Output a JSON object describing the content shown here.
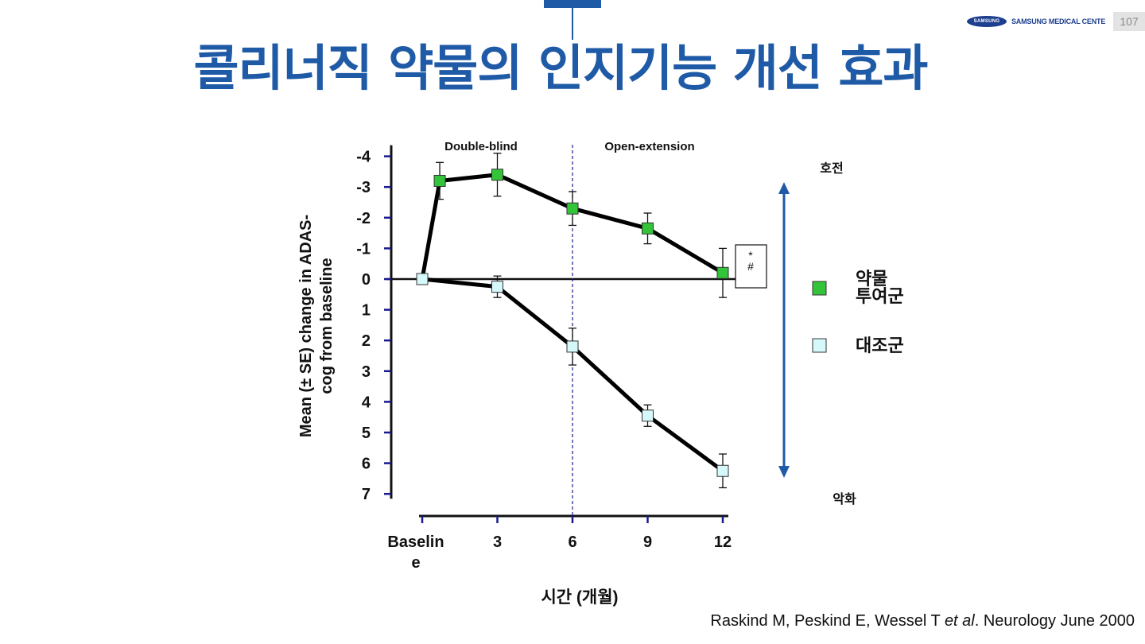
{
  "slide": {
    "title": "콜리너직 약물의 인지기능 개선 효과",
    "page_number": "107",
    "logo_mark": "SAMSUNG",
    "logo_text": "SAMSUNG MEDICAL CENTER",
    "citation_pre": "Raskind M, Peskind E, Wessel T ",
    "citation_italic": "et al",
    "citation_post": ". Neurology June 2000"
  },
  "chart_data": {
    "type": "line",
    "ylabel_line1": "Mean (± SE) change in ADAS-",
    "ylabel_line2": "cog from baseline",
    "xlabel": "시간 (개월)",
    "x": [
      0,
      3,
      6,
      9,
      12
    ],
    "x_tick_labels": [
      "Baselin\ne",
      "3",
      "6",
      "9",
      "12"
    ],
    "y_ticks": [
      -4,
      -3,
      -2,
      -1,
      0,
      1,
      2,
      3,
      4,
      5,
      6,
      7
    ],
    "y_tick_labels": [
      "-4",
      "-3",
      "-2",
      "-1",
      "0",
      "1",
      "2",
      "3",
      "4",
      "5",
      "6",
      "7"
    ],
    "ylim": [
      -4,
      7
    ],
    "y_inverted": true,
    "xlim": [
      -1,
      12.6
    ],
    "phase_divider_x": 6,
    "phases": [
      "Double-blind",
      "Open-extension"
    ],
    "significance_marks": "*\n#",
    "direction_labels": {
      "up": "호전",
      "down": "악화"
    },
    "series": [
      {
        "name": "약물\n투여군",
        "color": "#33c43a",
        "points": [
          {
            "x": 0,
            "y": 0.0
          },
          {
            "x": 0.7,
            "y": -3.2,
            "err": 0.6
          },
          {
            "x": 3,
            "y": -3.4,
            "err": 0.7
          },
          {
            "x": 6,
            "y": -2.3,
            "err": 0.55
          },
          {
            "x": 9,
            "y": -1.65,
            "err": 0.5
          },
          {
            "x": 12,
            "y": -0.2,
            "err": 0.8
          }
        ]
      },
      {
        "name": "대조군",
        "color": "#d5f8fa",
        "points": [
          {
            "x": 0,
            "y": 0.0
          },
          {
            "x": 3,
            "y": 0.25,
            "err": 0.35
          },
          {
            "x": 6,
            "y": 2.2,
            "err": 0.6
          },
          {
            "x": 9,
            "y": 4.45,
            "err": 0.35
          },
          {
            "x": 12,
            "y": 6.25,
            "err": 0.55
          }
        ]
      }
    ]
  }
}
